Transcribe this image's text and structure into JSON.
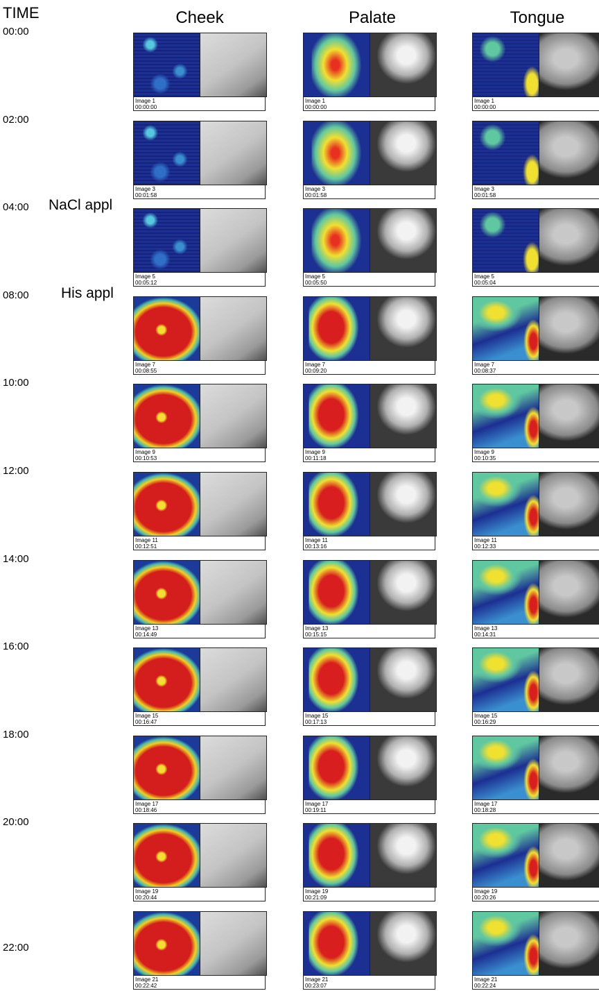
{
  "header": {
    "time_label": "TIME",
    "columns": [
      "Cheek",
      "Palate",
      "Tongue"
    ]
  },
  "rows": [
    {
      "time": "00:00",
      "panels": [
        {
          "image": "Image 1",
          "timestamp": "00:00:00"
        },
        {
          "image": "Image 1",
          "timestamp": "00:00:00"
        },
        {
          "image": "Image 1",
          "timestamp": "00:00:00"
        }
      ]
    },
    {
      "time": "02:00",
      "panels": [
        {
          "image": "Image 3",
          "timestamp": "00:01:58"
        },
        {
          "image": "Image 3",
          "timestamp": "00:01:58"
        },
        {
          "image": "Image 3",
          "timestamp": "00:01:58"
        }
      ]
    },
    {
      "time": "04:00",
      "note": "NaCl appl",
      "panels": [
        {
          "image": "Image 5",
          "timestamp": "00:05:12"
        },
        {
          "image": "Image 5",
          "timestamp": "00:05:50"
        },
        {
          "image": "Image 5",
          "timestamp": "00:05:04"
        }
      ]
    },
    {
      "time": "08:00",
      "note": "His appl",
      "panels": [
        {
          "image": "Image 7",
          "timestamp": "00:08:55"
        },
        {
          "image": "Image 7",
          "timestamp": "00:09:20"
        },
        {
          "image": "Image 7",
          "timestamp": "00:08:37"
        }
      ]
    },
    {
      "time": "10:00",
      "panels": [
        {
          "image": "Image 9",
          "timestamp": "00:10:53"
        },
        {
          "image": "Image 9",
          "timestamp": "00:11:18"
        },
        {
          "image": "Image 9",
          "timestamp": "00:10:35"
        }
      ]
    },
    {
      "time": "12:00",
      "panels": [
        {
          "image": "Image 11",
          "timestamp": "00:12:51"
        },
        {
          "image": "Image 11",
          "timestamp": "00:13:16"
        },
        {
          "image": "Image 11",
          "timestamp": "00:12:33"
        }
      ]
    },
    {
      "time": "14:00",
      "panels": [
        {
          "image": "Image 13",
          "timestamp": "00:14:49"
        },
        {
          "image": "Image 13",
          "timestamp": "00:15:15"
        },
        {
          "image": "Image 13",
          "timestamp": "00:14:31"
        }
      ]
    },
    {
      "time": "16:00",
      "panels": [
        {
          "image": "Image 15",
          "timestamp": "00:16:47"
        },
        {
          "image": "Image 15",
          "timestamp": "00:17:13"
        },
        {
          "image": "Image 15",
          "timestamp": "00:16:29"
        }
      ]
    },
    {
      "time": "18:00",
      "panels": [
        {
          "image": "Image 17",
          "timestamp": "00:18:46"
        },
        {
          "image": "Image 17",
          "timestamp": "00:19:11"
        },
        {
          "image": "Image 17",
          "timestamp": "00:18:28"
        }
      ]
    },
    {
      "time": "20:00",
      "panels": [
        {
          "image": "Image 19",
          "timestamp": "00:20:44"
        },
        {
          "image": "Image 19",
          "timestamp": "00:21:09"
        },
        {
          "image": "Image 19",
          "timestamp": "00:20:26"
        }
      ]
    },
    {
      "time": "22:00",
      "panels": [
        {
          "image": "Image 21",
          "timestamp": "00:22:42"
        },
        {
          "image": "Image 21",
          "timestamp": "00:23:07"
        },
        {
          "image": "Image 21",
          "timestamp": "00:22:24"
        }
      ]
    }
  ]
}
